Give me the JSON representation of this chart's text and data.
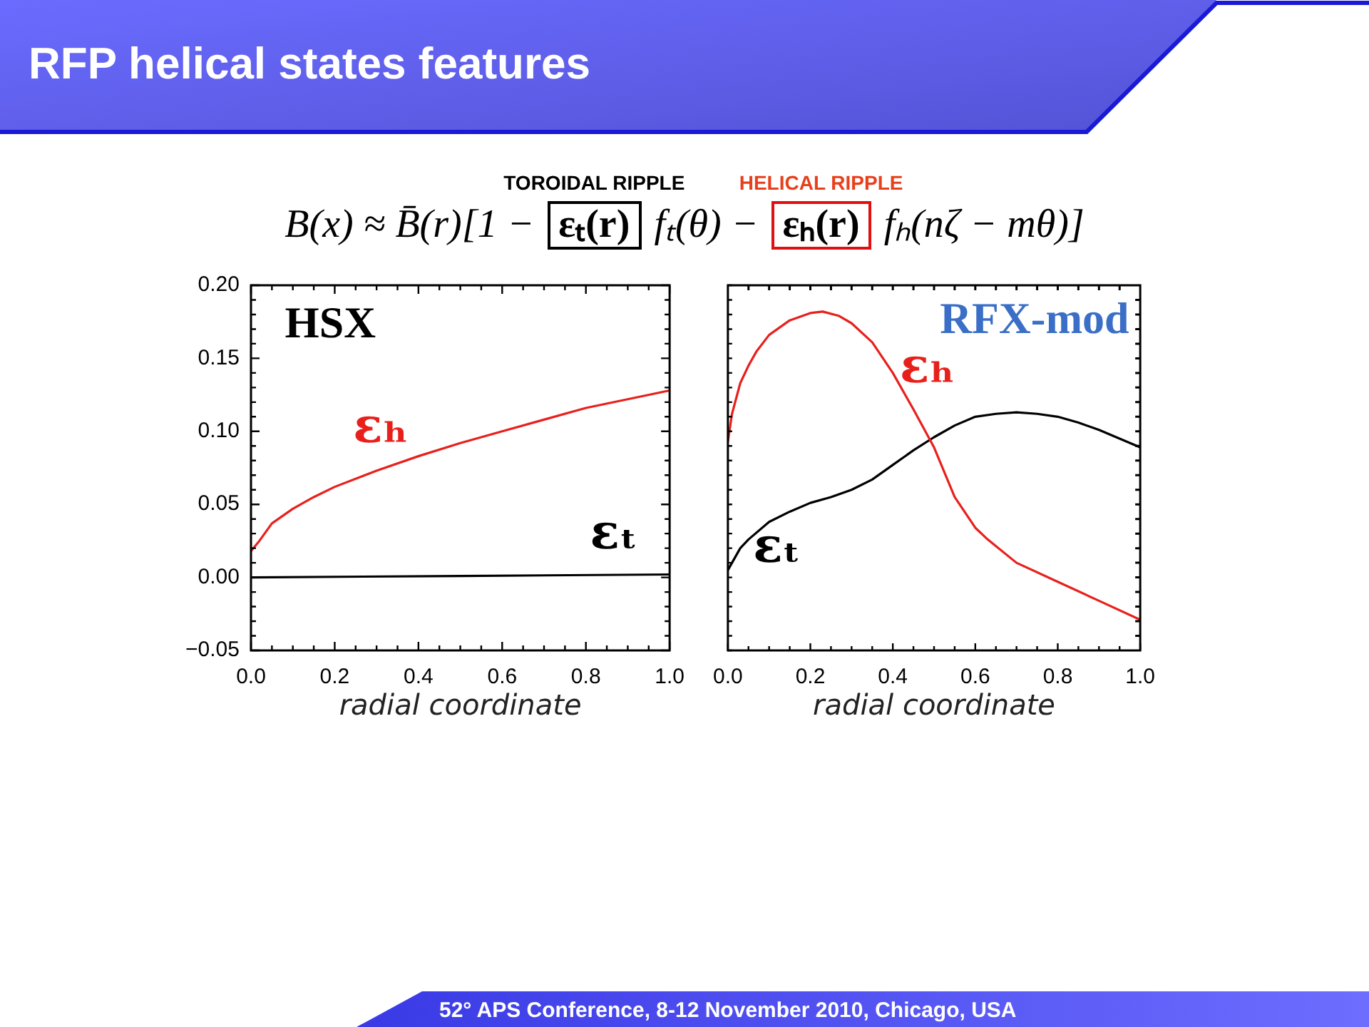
{
  "chart_data": [
    {
      "type": "other",
      "title": "RFP helical states features",
      "annotations": [
        "TOROIDAL RIPPLE",
        "HELICAL RIPPLE",
        "B(x) ≈ B̄(r)[1 −",
        "εₜ(r)",
        "fₜ(θ) −",
        "εₕ(r)",
        "fₕ(nζ − mθ)]",
        "52° APS Conference, 8-12 November 2010, Chicago, USA"
      ]
    },
    {
      "type": "line",
      "title": "HSX",
      "xlabel": "radial coordinate",
      "series": [
        {
          "name": "εₕ",
          "color": "#e8201c",
          "x": [
            0,
            0.02,
            0.05,
            0.1,
            0.15,
            0.2,
            0.3,
            0.4,
            0.5,
            0.6,
            0.7,
            0.8,
            0.9,
            1.0
          ],
          "values": [
            0.018,
            0.025,
            0.037,
            0.047,
            0.055,
            0.062,
            0.073,
            0.083,
            0.092,
            0.1,
            0.108,
            0.116,
            0.122,
            0.128
          ]
        },
        {
          "name": "εₜ",
          "color": "#000000",
          "x": [
            0,
            0.5,
            1.0
          ],
          "values": [
            0,
            0.001,
            0.002
          ]
        }
      ],
      "xlim": [
        0,
        1
      ],
      "ylim": [
        -0.05,
        0.2
      ],
      "xticks": [
        {
          "value": 0,
          "label": "0.0"
        },
        {
          "value": 0.05,
          "label": null
        },
        {
          "value": 0.1,
          "label": null
        },
        {
          "value": 0.15,
          "label": null
        },
        {
          "value": 0.2,
          "label": "0.2"
        },
        {
          "value": 0.25,
          "label": null
        },
        {
          "value": 0.3,
          "label": null
        },
        {
          "value": 0.35,
          "label": null
        },
        {
          "value": 0.4,
          "label": "0.4"
        },
        {
          "value": 0.45,
          "label": null
        },
        {
          "value": 0.5,
          "label": null
        },
        {
          "value": 0.55,
          "label": null
        },
        {
          "value": 0.6,
          "label": "0.6"
        },
        {
          "value": 0.65,
          "label": null
        },
        {
          "value": 0.7,
          "label": null
        },
        {
          "value": 0.75,
          "label": null
        },
        {
          "value": 0.8,
          "label": "0.8"
        },
        {
          "value": 0.85,
          "label": null
        },
        {
          "value": 0.9,
          "label": null
        },
        {
          "value": 0.95,
          "label": null
        },
        {
          "value": 1.0,
          "label": "1.0"
        }
      ],
      "yticks": [
        {
          "value": -0.05,
          "label": "−0.05"
        },
        {
          "value": -0.04,
          "label": null
        },
        {
          "value": -0.03,
          "label": null
        },
        {
          "value": -0.02,
          "label": null
        },
        {
          "value": -0.01,
          "label": null
        },
        {
          "value": 0,
          "label": "0.00"
        },
        {
          "value": 0.01,
          "label": null
        },
        {
          "value": 0.02,
          "label": null
        },
        {
          "value": 0.03,
          "label": null
        },
        {
          "value": 0.04,
          "label": null
        },
        {
          "value": 0.05,
          "label": "0.05"
        },
        {
          "value": 0.06,
          "label": null
        },
        {
          "value": 0.07,
          "label": null
        },
        {
          "value": 0.08,
          "label": null
        },
        {
          "value": 0.09,
          "label": null
        },
        {
          "value": 0.1,
          "label": "0.10"
        },
        {
          "value": 0.11,
          "label": null
        },
        {
          "value": 0.12,
          "label": null
        },
        {
          "value": 0.13,
          "label": null
        },
        {
          "value": 0.14,
          "label": null
        },
        {
          "value": 0.15,
          "label": "0.15"
        },
        {
          "value": 0.16,
          "label": null
        },
        {
          "value": 0.17,
          "label": null
        },
        {
          "value": 0.18,
          "label": null
        },
        {
          "value": 0.19,
          "label": null
        },
        {
          "value": 0.2,
          "label": "0.20"
        }
      ]
    },
    {
      "type": "line",
      "title": "RFX-mod",
      "xlabel": "radial coordinate",
      "tick_labels": "x",
      "series": [
        {
          "name": "εₕ",
          "color": "#e8201c",
          "x": [
            0,
            0.01,
            0.03,
            0.05,
            0.07,
            0.1,
            0.15,
            0.2,
            0.23,
            0.27,
            0.3,
            0.35,
            0.4,
            0.45,
            0.5,
            0.55,
            0.6,
            0.63,
            0.7,
            0.8,
            0.9,
            1.0
          ],
          "values": [
            0.093,
            0.112,
            0.133,
            0.145,
            0.155,
            0.166,
            0.176,
            0.181,
            0.182,
            0.179,
            0.174,
            0.161,
            0.14,
            0.115,
            0.089,
            0.055,
            0.034,
            0.026,
            0.01,
            -0.003,
            -0.016,
            -0.029
          ]
        },
        {
          "name": "εₜ",
          "color": "#000000",
          "x": [
            0,
            0.03,
            0.05,
            0.1,
            0.15,
            0.2,
            0.25,
            0.3,
            0.35,
            0.4,
            0.45,
            0.5,
            0.55,
            0.6,
            0.65,
            0.7,
            0.75,
            0.8,
            0.85,
            0.9,
            0.95,
            1.0
          ],
          "values": [
            0.005,
            0.02,
            0.026,
            0.038,
            0.045,
            0.051,
            0.055,
            0.06,
            0.067,
            0.077,
            0.087,
            0.096,
            0.104,
            0.11,
            0.112,
            0.113,
            0.112,
            0.11,
            0.106,
            0.101,
            0.095,
            0.089
          ]
        }
      ],
      "xlim": [
        0,
        1
      ],
      "ylim": [
        -0.05,
        0.2
      ],
      "xticks": [
        {
          "value": 0,
          "label": "0.0"
        },
        {
          "value": 0.05,
          "label": null
        },
        {
          "value": 0.1,
          "label": null
        },
        {
          "value": 0.15,
          "label": null
        },
        {
          "value": 0.2,
          "label": "0.2"
        },
        {
          "value": 0.25,
          "label": null
        },
        {
          "value": 0.3,
          "label": null
        },
        {
          "value": 0.35,
          "label": null
        },
        {
          "value": 0.4,
          "label": "0.4"
        },
        {
          "value": 0.45,
          "label": null
        },
        {
          "value": 0.5,
          "label": null
        },
        {
          "value": 0.55,
          "label": null
        },
        {
          "value": 0.6,
          "label": "0.6"
        },
        {
          "value": 0.65,
          "label": null
        },
        {
          "value": 0.7,
          "label": null
        },
        {
          "value": 0.75,
          "label": null
        },
        {
          "value": 0.8,
          "label": "0.8"
        },
        {
          "value": 0.85,
          "label": null
        },
        {
          "value": 0.9,
          "label": null
        },
        {
          "value": 0.95,
          "label": null
        },
        {
          "value": 1.0,
          "label": "1.0"
        }
      ],
      "yticks": [
        {
          "value": -0.05,
          "label": null
        },
        {
          "value": -0.04,
          "label": null
        },
        {
          "value": -0.03,
          "label": null
        },
        {
          "value": -0.02,
          "label": null
        },
        {
          "value": -0.01,
          "label": null
        },
        {
          "value": 0,
          "label": null
        },
        {
          "value": 0.01,
          "label": null
        },
        {
          "value": 0.02,
          "label": null
        },
        {
          "value": 0.03,
          "label": null
        },
        {
          "value": 0.04,
          "label": null
        },
        {
          "value": 0.05,
          "label": null
        },
        {
          "value": 0.06,
          "label": null
        },
        {
          "value": 0.07,
          "label": null
        },
        {
          "value": 0.08,
          "label": null
        },
        {
          "value": 0.09,
          "label": null
        },
        {
          "value": 0.1,
          "label": null
        },
        {
          "value": 0.11,
          "label": null
        },
        {
          "value": 0.12,
          "label": null
        },
        {
          "value": 0.13,
          "label": null
        },
        {
          "value": 0.14,
          "label": null
        },
        {
          "value": 0.15,
          "label": null
        },
        {
          "value": 0.16,
          "label": null
        },
        {
          "value": 0.17,
          "label": null
        },
        {
          "value": 0.18,
          "label": null
        },
        {
          "value": 0.19,
          "label": null
        },
        {
          "value": 0.2,
          "label": null
        }
      ]
    }
  ]
}
